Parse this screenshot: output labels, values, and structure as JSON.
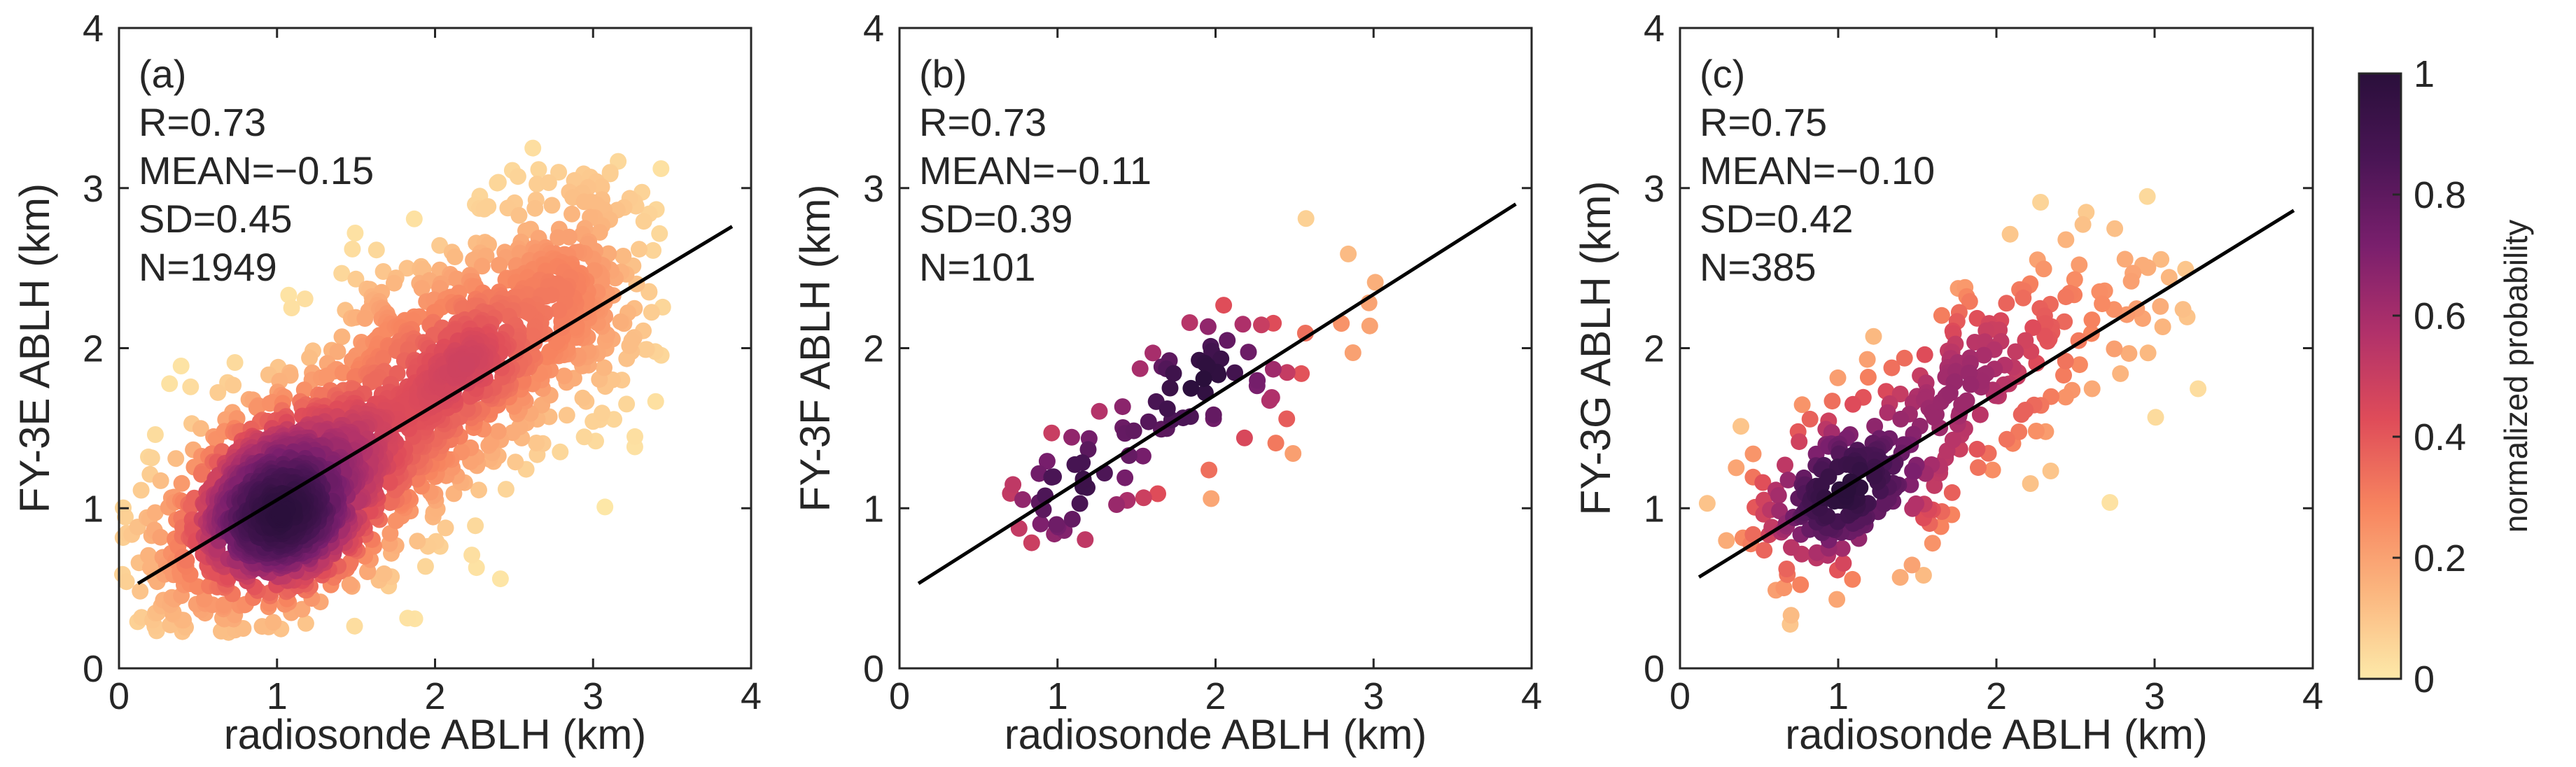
{
  "colorbar": {
    "label": "normalized probability",
    "min": 0,
    "max": 1,
    "ticks": [
      "0",
      "0.2",
      "0.4",
      "0.6",
      "0.8",
      "1"
    ],
    "colors": [
      "#fde9a9",
      "#fbb67f",
      "#f7845f",
      "#df4c59",
      "#b1316a",
      "#7a1f6d",
      "#4a1555",
      "#2a0f3b"
    ]
  },
  "chart_data": [
    {
      "type": "scatter",
      "panel_label": "(a)",
      "xlabel": "radiosonde ABLH (km)",
      "ylabel": "FY-3E ABLH (km)",
      "xlim": [
        0,
        4
      ],
      "ylim": [
        0,
        4
      ],
      "xticks": [
        "0",
        "1",
        "2",
        "3",
        "4"
      ],
      "yticks": [
        "0",
        "1",
        "2",
        "3",
        "4"
      ],
      "stats": [
        "R=0.73",
        "MEAN=−0.15",
        "SD=0.45",
        "N=1949"
      ],
      "fit_line": {
        "x": [
          0.12,
          3.88
        ],
        "y": [
          0.53,
          2.76
        ]
      },
      "point_count": 1949,
      "clusters": [
        {
          "cx": 1.0,
          "cy": 1.0,
          "sx": 0.42,
          "sy": 0.35,
          "rho": 0.35,
          "weight": 0.55
        },
        {
          "cx": 2.0,
          "cy": 1.85,
          "sx": 0.45,
          "sy": 0.45,
          "rho": 0.4,
          "weight": 0.33
        },
        {
          "cx": 2.9,
          "cy": 2.3,
          "sx": 0.35,
          "sy": 0.45,
          "rho": 0.3,
          "weight": 0.12
        }
      ],
      "xrange": [
        0.02,
        3.45
      ],
      "yrange": [
        0.22,
        3.4
      ]
    },
    {
      "type": "scatter",
      "panel_label": "(b)",
      "xlabel": "radiosonde ABLH (km)",
      "ylabel": "FY-3F ABLH (km)",
      "xlim": [
        0,
        4
      ],
      "ylim": [
        0,
        4
      ],
      "xticks": [
        "0",
        "1",
        "2",
        "3",
        "4"
      ],
      "yticks": [
        "0",
        "1",
        "2",
        "3",
        "4"
      ],
      "stats": [
        "R=0.73",
        "MEAN=−0.11",
        "SD=0.39",
        "N=101"
      ],
      "fit_line": {
        "x": [
          0.12,
          3.9
        ],
        "y": [
          0.53,
          2.9
        ]
      },
      "point_count": 101,
      "clusters": [
        {
          "cx": 1.05,
          "cy": 1.05,
          "sx": 0.22,
          "sy": 0.2,
          "rho": 0.3,
          "weight": 0.45
        },
        {
          "cx": 1.85,
          "cy": 1.75,
          "sx": 0.3,
          "sy": 0.3,
          "rho": 0.4,
          "weight": 0.45
        },
        {
          "cx": 2.7,
          "cy": 2.2,
          "sx": 0.3,
          "sy": 0.4,
          "rho": 0.3,
          "weight": 0.1
        }
      ],
      "xrange": [
        0.4,
        3.05
      ],
      "yrange": [
        0.55,
        2.9
      ]
    },
    {
      "type": "scatter",
      "panel_label": "(c)",
      "xlabel": "radiosonde ABLH (km)",
      "ylabel": "FY-3G ABLH (km)",
      "xlim": [
        0,
        4
      ],
      "ylim": [
        0,
        4
      ],
      "xticks": [
        "0",
        "1",
        "2",
        "3",
        "4"
      ],
      "yticks": [
        "0",
        "1",
        "2",
        "3",
        "4"
      ],
      "stats": [
        "R=0.75",
        "MEAN=−0.10",
        "SD=0.42",
        "N=385"
      ],
      "fit_line": {
        "x": [
          0.12,
          3.88
        ],
        "y": [
          0.57,
          2.86
        ]
      },
      "point_count": 385,
      "clusters": [
        {
          "cx": 1.0,
          "cy": 1.05,
          "sx": 0.3,
          "sy": 0.28,
          "rho": 0.3,
          "weight": 0.45
        },
        {
          "cx": 1.8,
          "cy": 1.7,
          "sx": 0.4,
          "sy": 0.4,
          "rho": 0.45,
          "weight": 0.4
        },
        {
          "cx": 2.6,
          "cy": 2.2,
          "sx": 0.4,
          "sy": 0.45,
          "rho": 0.3,
          "weight": 0.15
        }
      ],
      "xrange": [
        0.15,
        3.3
      ],
      "yrange": [
        0.1,
        2.95
      ]
    }
  ]
}
